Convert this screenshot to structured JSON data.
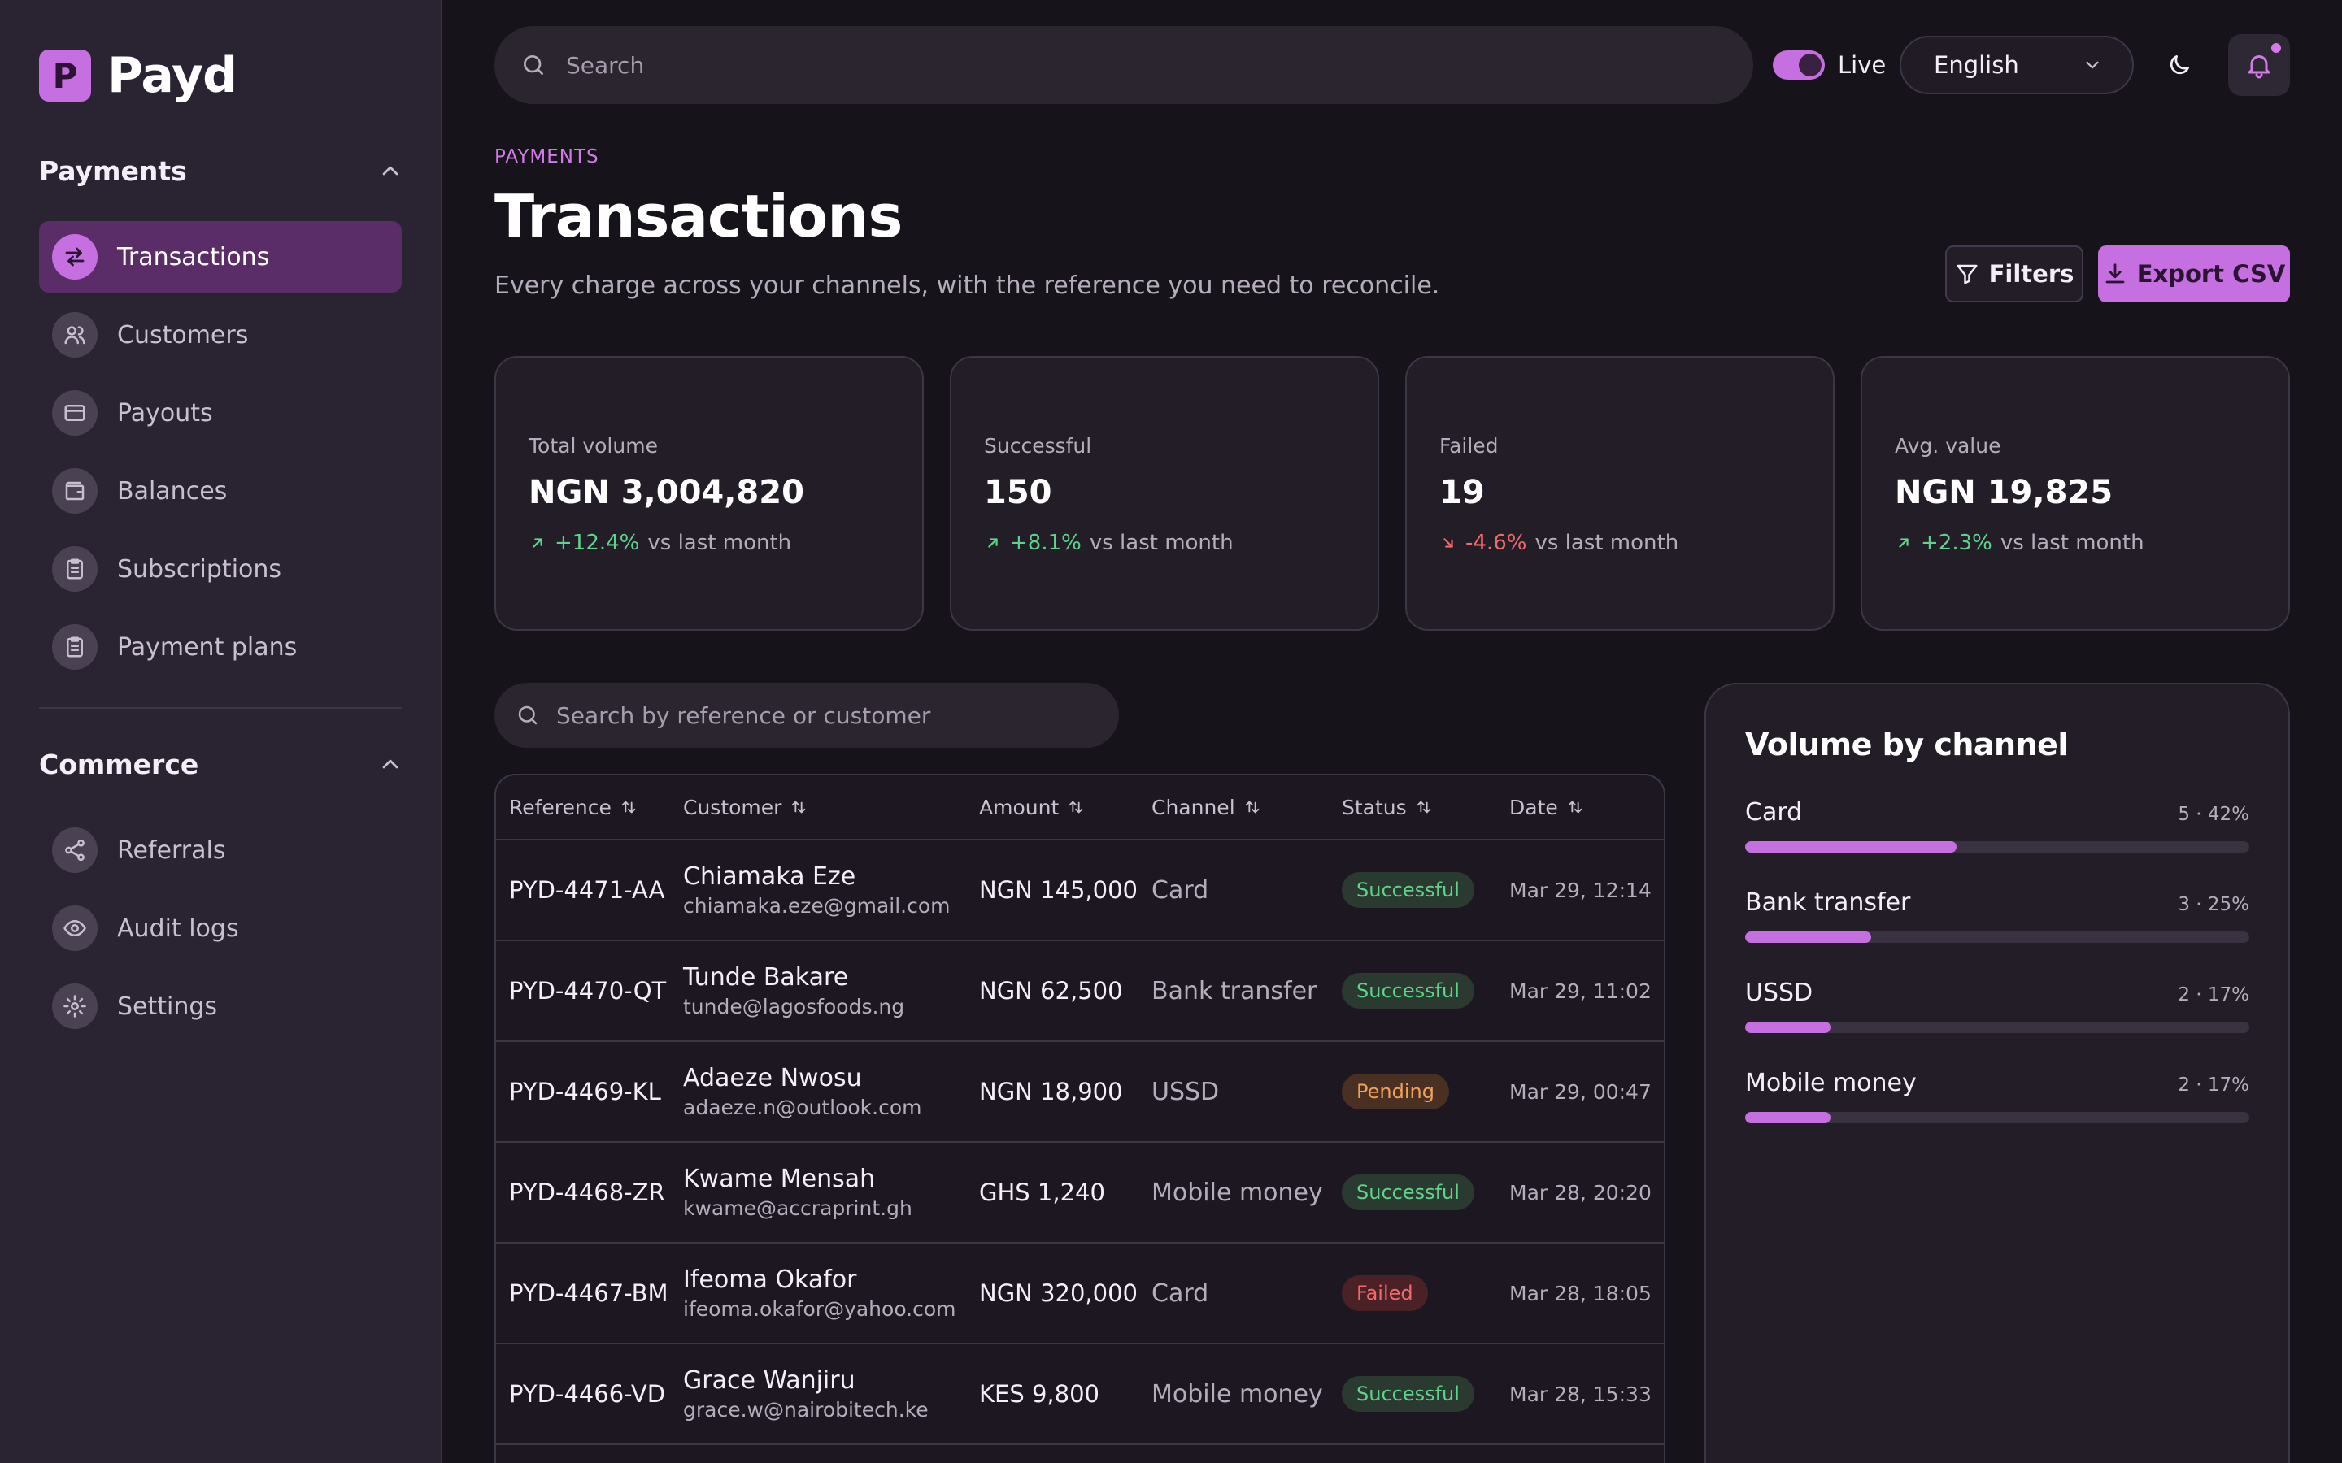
{
  "app": {
    "logo_letter": "P",
    "name": "Payd"
  },
  "sidebar": {
    "sections": [
      {
        "title": "Payments",
        "items": [
          {
            "label": "Transactions",
            "icon": "arrows-swap-icon",
            "active": true
          },
          {
            "label": "Customers",
            "icon": "users-icon"
          },
          {
            "label": "Payouts",
            "icon": "card-icon"
          },
          {
            "label": "Balances",
            "icon": "wallet-icon"
          },
          {
            "label": "Subscriptions",
            "icon": "clipboard-icon"
          },
          {
            "label": "Payment plans",
            "icon": "clipboard-icon"
          }
        ]
      },
      {
        "title": "Commerce",
        "items": [
          {
            "label": "Referrals",
            "icon": "share-icon"
          },
          {
            "label": "Audit logs",
            "icon": "eye-icon"
          },
          {
            "label": "Settings",
            "icon": "gear-icon"
          }
        ]
      }
    ]
  },
  "topbar": {
    "search_placeholder": "Search",
    "live_label": "Live",
    "language": "English"
  },
  "header": {
    "eyebrow": "PAYMENTS",
    "title": "Transactions",
    "subtitle": "Every charge across your channels, with the reference you need to reconcile.",
    "filters_label": "Filters",
    "export_label": "Export CSV"
  },
  "stats": [
    {
      "label": "Total volume",
      "value": "NGN 3,004,820",
      "delta": "+12.4%",
      "trend": "up",
      "suffix": "vs last month"
    },
    {
      "label": "Successful",
      "value": "150",
      "delta": "+8.1%",
      "trend": "up",
      "suffix": "vs last month"
    },
    {
      "label": "Failed",
      "value": "19",
      "delta": "-4.6%",
      "trend": "down",
      "suffix": "vs last month"
    },
    {
      "label": "Avg. value",
      "value": "NGN 19,825",
      "delta": "+2.3%",
      "trend": "up",
      "suffix": "vs last month"
    }
  ],
  "table": {
    "search_placeholder": "Search by reference or customer",
    "columns": [
      "Reference",
      "Customer",
      "Amount",
      "Channel",
      "Status",
      "Date"
    ],
    "rows": [
      {
        "ref": "PYD-4471-AA",
        "name": "Chiamaka Eze",
        "email": "chiamaka.eze@gmail.com",
        "amount": "NGN 145,000",
        "channel": "Card",
        "status": "Successful",
        "date": "Mar 29, 12:14"
      },
      {
        "ref": "PYD-4470-QT",
        "name": "Tunde Bakare",
        "email": "tunde@lagosfoods.ng",
        "amount": "NGN 62,500",
        "channel": "Bank transfer",
        "status": "Successful",
        "date": "Mar 29, 11:02"
      },
      {
        "ref": "PYD-4469-KL",
        "name": "Adaeze Nwosu",
        "email": "adaeze.n@outlook.com",
        "amount": "NGN 18,900",
        "channel": "USSD",
        "status": "Pending",
        "date": "Mar 29, 00:47"
      },
      {
        "ref": "PYD-4468-ZR",
        "name": "Kwame Mensah",
        "email": "kwame@accraprint.gh",
        "amount": "GHS 1,240",
        "channel": "Mobile money",
        "status": "Successful",
        "date": "Mar 28, 20:20"
      },
      {
        "ref": "PYD-4467-BM",
        "name": "Ifeoma Okafor",
        "email": "ifeoma.okafor@yahoo.com",
        "amount": "NGN 320,000",
        "channel": "Card",
        "status": "Failed",
        "date": "Mar 28, 18:05"
      },
      {
        "ref": "PYD-4466-VD",
        "name": "Grace Wanjiru",
        "email": "grace.w@nairobitech.ke",
        "amount": "KES 9,800",
        "channel": "Mobile money",
        "status": "Successful",
        "date": "Mar 28, 15:33"
      }
    ]
  },
  "channels": {
    "title": "Volume by channel",
    "items": [
      {
        "name": "Card",
        "stat": "5 · 42%",
        "percent": 42
      },
      {
        "name": "Bank transfer",
        "stat": "3 · 25%",
        "percent": 25
      },
      {
        "name": "USSD",
        "stat": "2 · 17%",
        "percent": 17
      },
      {
        "name": "Mobile money",
        "stat": "2 · 17%",
        "percent": 17
      }
    ]
  },
  "colors": {
    "accent": "#c56fe0",
    "success": "#5ed38a",
    "pending": "#f0a25a",
    "danger": "#f06a6a"
  }
}
